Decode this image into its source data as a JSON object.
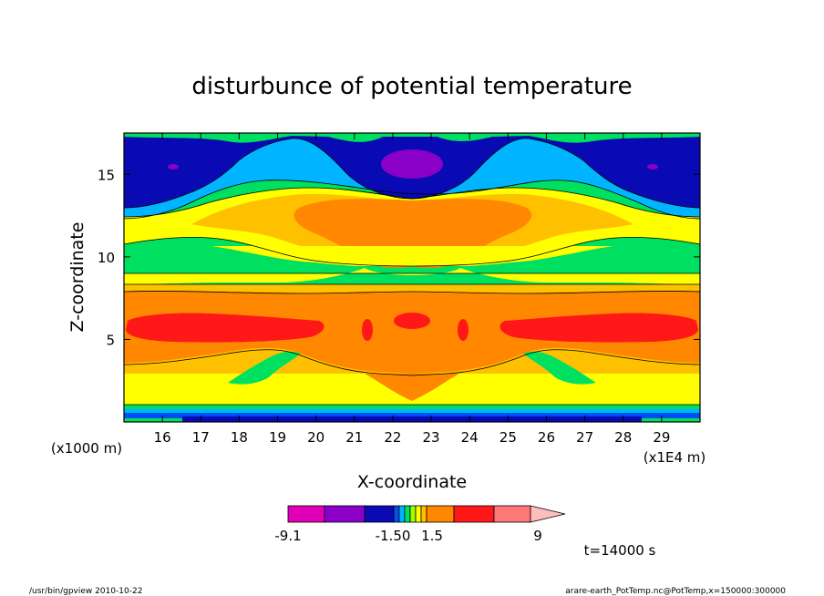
{
  "chart_data": {
    "type": "heatmap",
    "title": "disturbunce of potential temperature",
    "xlabel": "X-coordinate",
    "ylabel": "Z-coordinate",
    "x_unit": "(x1E4 m)",
    "y_unit": "(x1000 m)",
    "x_ticks": [
      16,
      17,
      18,
      19,
      20,
      21,
      22,
      23,
      24,
      25,
      26,
      27,
      28,
      29
    ],
    "y_ticks": [
      5,
      10,
      15
    ],
    "xlim": [
      15,
      30
    ],
    "ylim": [
      0,
      17.5
    ],
    "colorbar": {
      "tick_labels": [
        "-9.1",
        "-1.50",
        "1.5",
        "9"
      ],
      "colors": [
        "#e000b8",
        "#8a00c8",
        "#0a0ab4",
        "#0050f0",
        "#00b4ff",
        "#00e060",
        "#a0ff00",
        "#ffff00",
        "#ffc000",
        "#ff8800",
        "#ff1818",
        "#ff7878",
        "#ffbebe"
      ]
    },
    "fields": {
      "band_colors": [
        "#0a0ab4",
        "#00b4ff",
        "#00e060",
        "#ffff00",
        "#ffc000",
        "#ff8800",
        "#ff1818",
        "#8a00c8"
      ]
    }
  },
  "annotations": {
    "time": "t=14000 s",
    "footer_left": "/usr/bin/gpview  2010-10-22",
    "footer_right": "arare-earth_PotTemp.nc@PotTemp,x=150000:300000"
  }
}
